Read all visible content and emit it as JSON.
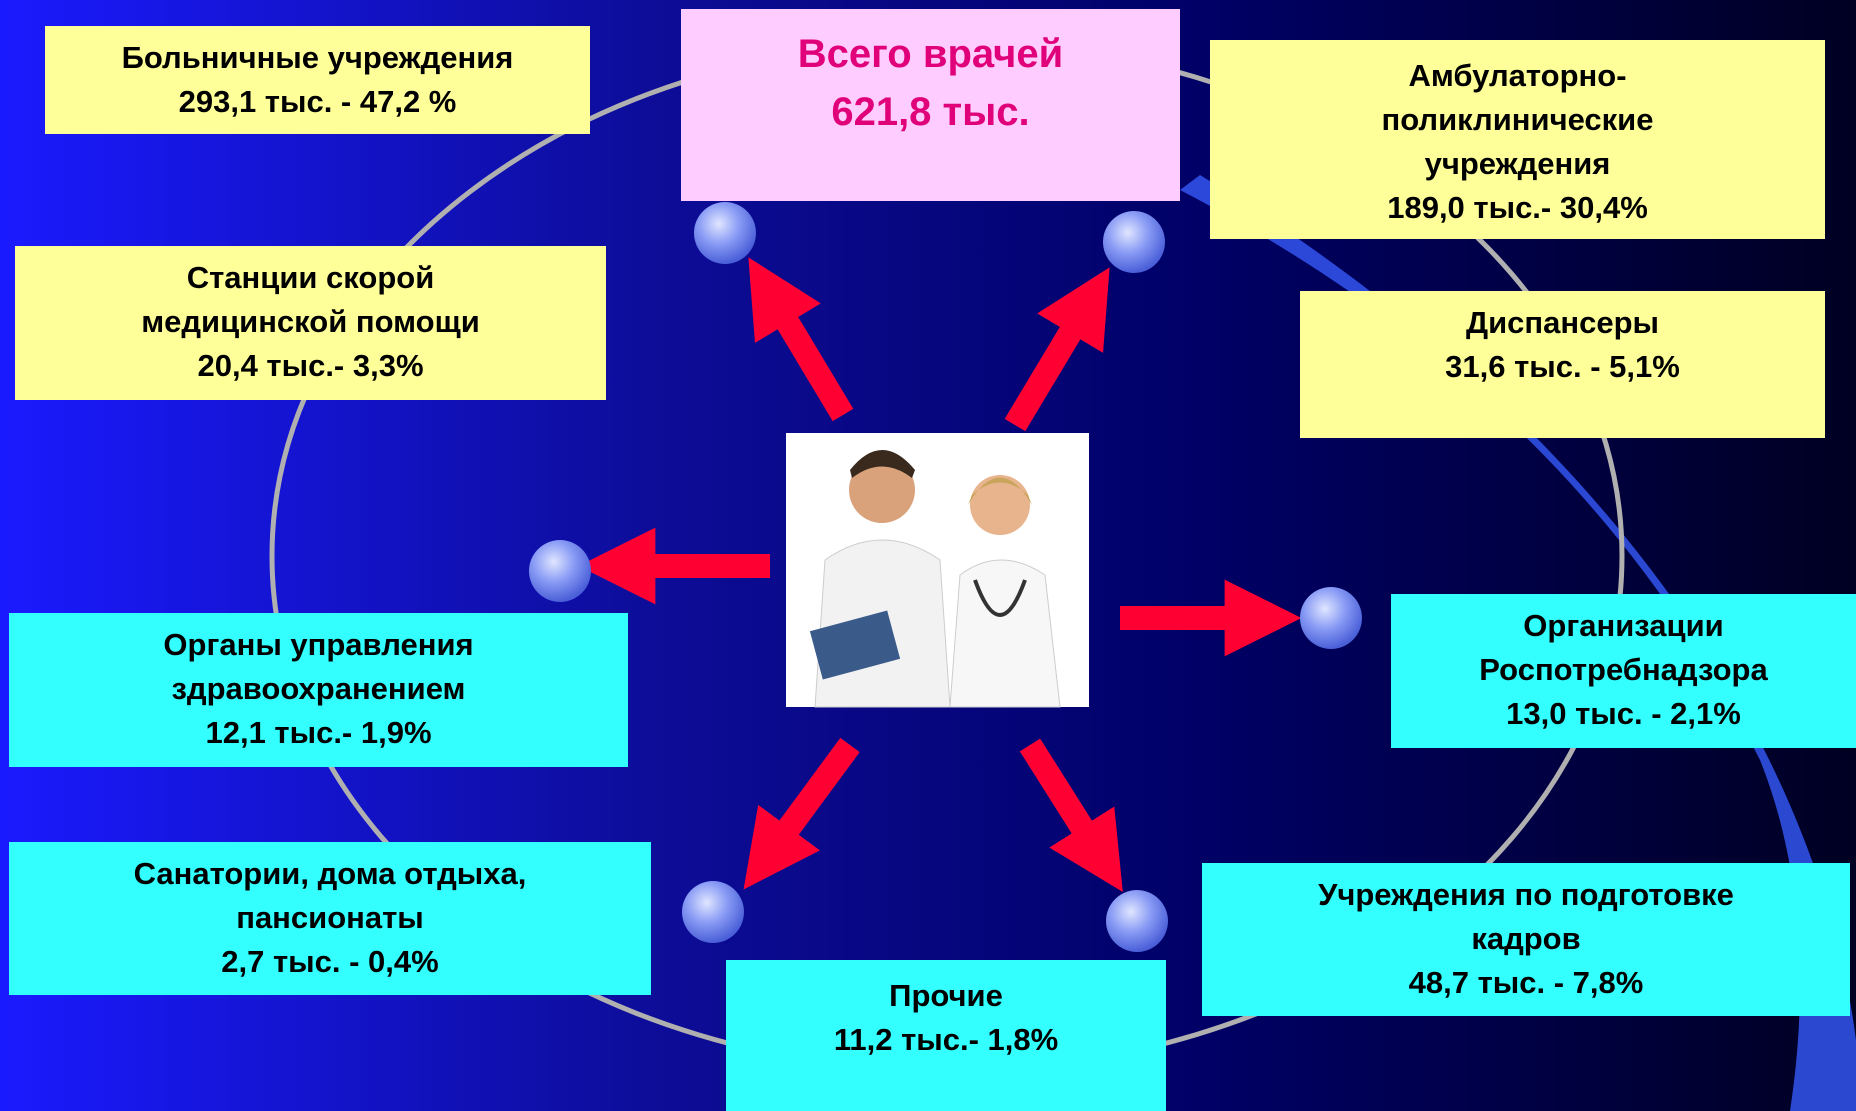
{
  "title": {
    "lines": [
      "Всего врачей",
      "621,8 тыс."
    ]
  },
  "nodes": [
    {
      "lines": [
        "Больничные учреждения",
        "293,1 тыс. - 47,2 %"
      ]
    },
    {
      "lines": [
        "Амбулаторно-",
        "поликлинические",
        "учреждения",
        "189,0 тыс.- 30,4%"
      ]
    },
    {
      "lines": [
        "Станции скорой",
        "медицинской помощи",
        "20,4 тыс.- 3,3%"
      ]
    },
    {
      "lines": [
        "Диспансеры",
        "31,6 тыс. - 5,1%"
      ]
    },
    {
      "lines": [
        "Органы управления",
        "здравоохранением",
        "12,1 тыс.- 1,9%"
      ]
    },
    {
      "lines": [
        "Организации",
        "Роспотребнадзора",
        "13,0 тыс. - 2,1%"
      ]
    },
    {
      "lines": [
        "Санатории, дома отдыха,",
        "пансионаты",
        "2,7 тыс. - 0,4%"
      ]
    },
    {
      "lines": [
        "Учреждения по подготовке",
        "кадров",
        "48,7 тыс. - 7,8%"
      ]
    },
    {
      "lines": [
        "Прочие",
        "11,2 тыс.- 1,8%"
      ]
    }
  ]
}
